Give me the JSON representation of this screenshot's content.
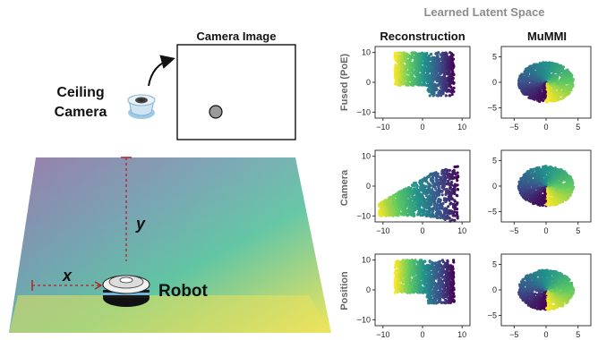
{
  "left_panel": {
    "camera_image_title": "Camera Image",
    "ceiling_camera_label_line1": "Ceiling",
    "ceiling_camera_label_line2": "Camera",
    "robot_label": "Robot",
    "x_label": "x",
    "y_label": "y"
  },
  "right_panel": {
    "title": "Learned Latent Space",
    "column_titles": [
      "Reconstruction",
      "MuMMI"
    ],
    "row_labels": [
      "Fused (PoE)",
      "Camera",
      "Position"
    ]
  },
  "colors": {
    "viridis_dark": "#440154",
    "viridis_blue": "#31688e",
    "viridis_teal": "#35b779",
    "viridis_yellow": "#fde725",
    "annotation_red": "#b22222",
    "floor_left": "#8e6fa3",
    "floor_right": "#fde725"
  },
  "chart_data": [
    {
      "type": "scatter",
      "row": "Fused (PoE)",
      "column": "Reconstruction",
      "xlim": [
        -12,
        12
      ],
      "ylim": [
        -12,
        12
      ],
      "xticks": [
        -10,
        0,
        10
      ],
      "yticks": [
        -10,
        0,
        10
      ]
    },
    {
      "type": "scatter",
      "row": "Fused (PoE)",
      "column": "MuMMI",
      "xlim": [
        -7,
        7
      ],
      "ylim": [
        -7,
        7
      ],
      "xticks": [
        -5,
        0,
        5
      ],
      "yticks": [
        -5,
        0,
        5
      ]
    },
    {
      "type": "scatter",
      "row": "Camera",
      "column": "Reconstruction",
      "xlim": [
        -12,
        12
      ],
      "ylim": [
        -12,
        12
      ],
      "xticks": [
        -10,
        0,
        10
      ],
      "yticks": [
        -10,
        0,
        10
      ]
    },
    {
      "type": "scatter",
      "row": "Camera",
      "column": "MuMMI",
      "xlim": [
        -7,
        7
      ],
      "ylim": [
        -7,
        7
      ],
      "xticks": [
        -5,
        0,
        5
      ],
      "yticks": [
        -5,
        0,
        5
      ]
    },
    {
      "type": "scatter",
      "row": "Position",
      "column": "Reconstruction",
      "xlim": [
        -12,
        12
      ],
      "ylim": [
        -12,
        12
      ],
      "xticks": [
        -10,
        0,
        10
      ],
      "yticks": [
        -10,
        0,
        10
      ]
    },
    {
      "type": "scatter",
      "row": "Position",
      "column": "MuMMI",
      "xlim": [
        -7,
        7
      ],
      "ylim": [
        -7,
        7
      ],
      "xticks": [
        -5,
        0,
        5
      ],
      "yticks": [
        -5,
        0,
        5
      ]
    }
  ]
}
